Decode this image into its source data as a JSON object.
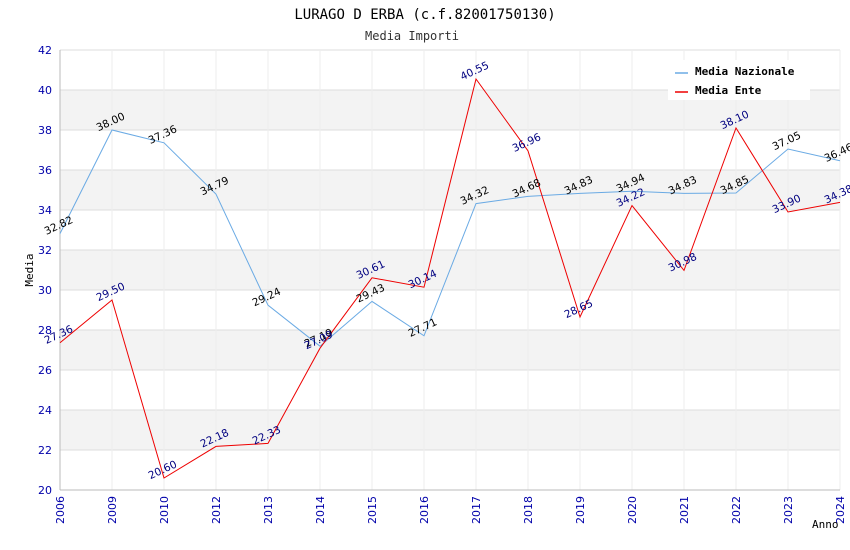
{
  "chart_data": {
    "type": "line",
    "title": "LURAGO D ERBA (c.f.82001750130)",
    "subtitle": "Media Importi",
    "xlabel": "Anno",
    "ylabel": "Media",
    "ylim": [
      20,
      42
    ],
    "yticks": [
      "20",
      "22",
      "24",
      "26",
      "28",
      "30",
      "32",
      "34",
      "36",
      "38",
      "40",
      "42"
    ],
    "categories": [
      "2006",
      "2009",
      "2010",
      "2012",
      "2013",
      "2014",
      "2015",
      "2016",
      "2017",
      "2018",
      "2019",
      "2020",
      "2021",
      "2022",
      "2023",
      "2024"
    ],
    "legend_position": "top-right",
    "grid": true,
    "series": [
      {
        "name": "Media Nazionale",
        "color": "#6aaae4",
        "values": [
          32.82,
          38.0,
          37.36,
          34.79,
          29.24,
          27.19,
          29.43,
          27.71,
          34.32,
          34.68,
          34.83,
          34.94,
          34.83,
          34.85,
          37.05,
          36.46
        ],
        "labels": [
          "32.82",
          "38.00",
          "37.36",
          "34.79",
          "29.24",
          "27.19",
          "29.43",
          "27.71",
          "34.32",
          "34.68",
          "34.83",
          "34.94",
          "34.83",
          "34.85",
          "37.05",
          "36.46"
        ]
      },
      {
        "name": "Media Ente",
        "color": "#ee0000",
        "values": [
          27.36,
          29.5,
          20.6,
          22.18,
          22.33,
          27.09,
          30.61,
          30.14,
          40.55,
          36.96,
          28.65,
          34.22,
          30.98,
          38.1,
          33.9,
          34.38
        ],
        "labels": [
          "27.36",
          "29.50",
          "20.60",
          "22.18",
          "22.33",
          "27.09",
          "30.61",
          "30.14",
          "40.55",
          "36.96",
          "28.65",
          "34.22",
          "30.98",
          "38.10",
          "33.90",
          "34.38"
        ]
      }
    ]
  }
}
